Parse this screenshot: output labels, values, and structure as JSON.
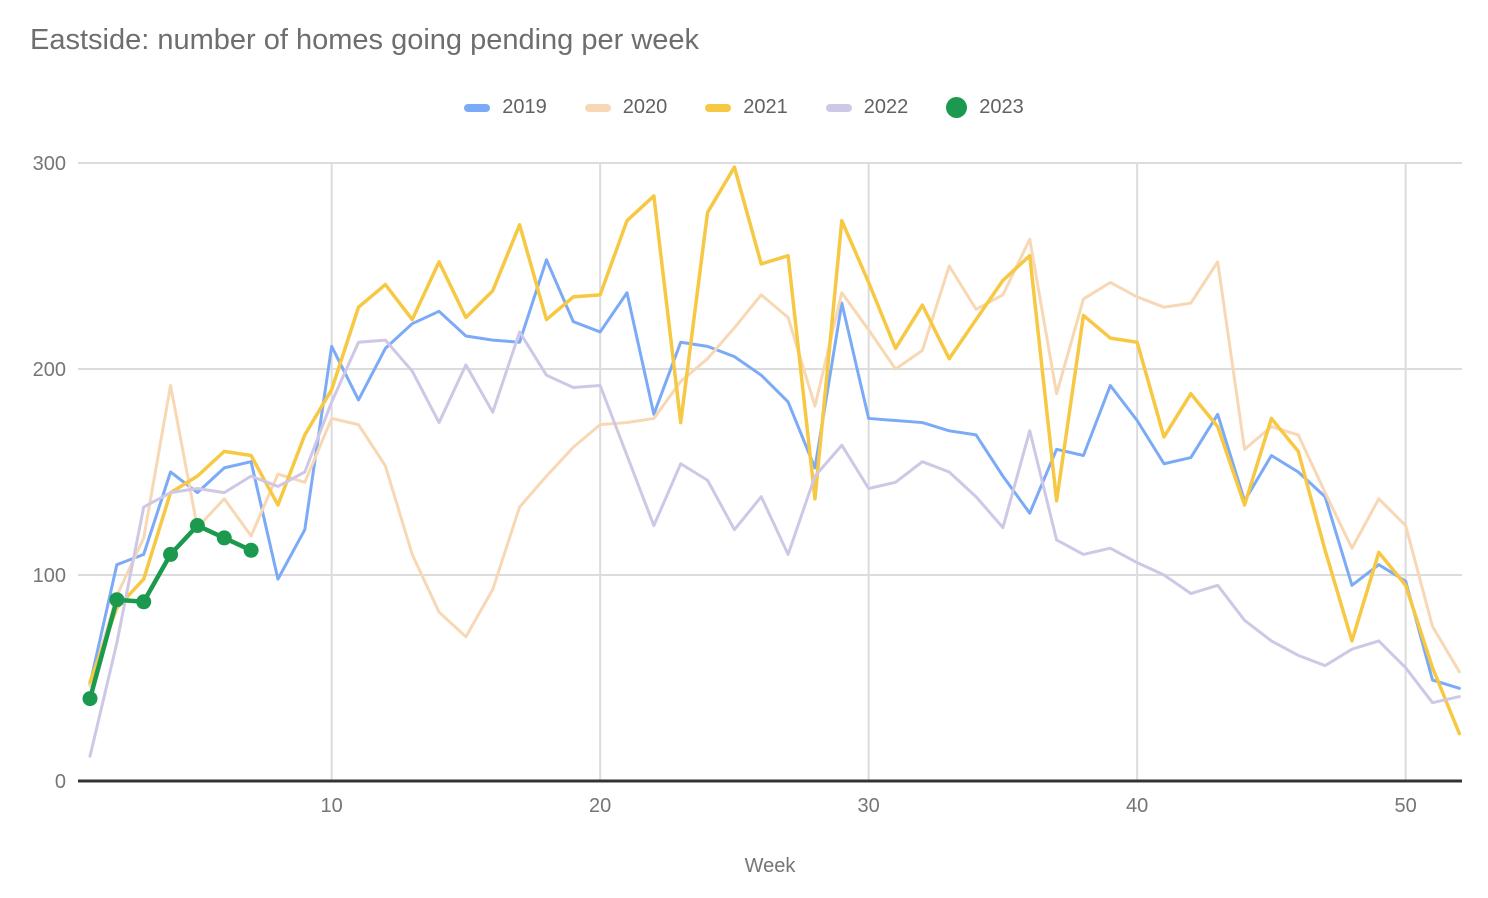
{
  "title": "Eastside: number of homes going pending per week",
  "axis": {
    "x_title": "Week",
    "x_ticks": [
      10,
      20,
      30,
      40,
      50
    ],
    "y_ticks": [
      0,
      100,
      200,
      300
    ],
    "ylim": [
      0,
      300
    ],
    "xlim": [
      1,
      52
    ],
    "grid": "on",
    "legend_position": "top-center"
  },
  "colors": {
    "grid": "#dcdcdc",
    "axis_line": "#333333",
    "tick_text": "#757575",
    "title_text": "#6e6e6e"
  },
  "chart_data": {
    "type": "line",
    "title": "Eastside: number of homes going pending per week",
    "xlabel": "Week",
    "ylabel": "",
    "x": [
      1,
      2,
      3,
      4,
      5,
      6,
      7,
      8,
      9,
      10,
      11,
      12,
      13,
      14,
      15,
      16,
      17,
      18,
      19,
      20,
      21,
      22,
      23,
      24,
      25,
      26,
      27,
      28,
      29,
      30,
      31,
      32,
      33,
      34,
      35,
      36,
      37,
      38,
      39,
      40,
      41,
      42,
      43,
      44,
      45,
      46,
      47,
      48,
      49,
      50,
      51,
      52
    ],
    "series": [
      {
        "name": "2019",
        "color": "#7baaf7",
        "swatch": "dash",
        "line_width": 3,
        "values": [
          47,
          105,
          110,
          150,
          140,
          152,
          155,
          98,
          122,
          211,
          185,
          210,
          222,
          228,
          216,
          214,
          213,
          253,
          223,
          218,
          237,
          178,
          213,
          211,
          206,
          197,
          184,
          152,
          232,
          176,
          175,
          174,
          170,
          168,
          148,
          130,
          161,
          158,
          192,
          175,
          154,
          157,
          178,
          136,
          158,
          150,
          138,
          95,
          105,
          97,
          49,
          45
        ]
      },
      {
        "name": "2020",
        "color": "#f8d8b4",
        "swatch": "dash",
        "line_width": 3,
        "values": [
          46,
          90,
          118,
          192,
          123,
          137,
          119,
          149,
          145,
          176,
          173,
          153,
          110,
          82,
          70,
          93,
          133,
          148,
          162,
          173,
          174,
          176,
          194,
          205,
          220,
          236,
          225,
          182,
          237,
          219,
          200,
          209,
          250,
          229,
          236,
          263,
          188,
          234,
          242,
          235,
          230,
          232,
          252,
          161,
          172,
          168,
          140,
          113,
          137,
          124,
          75,
          53
        ]
      },
      {
        "name": "2021",
        "color": "#f7c843",
        "swatch": "dash",
        "line_width": 3.5,
        "values": [
          48,
          84,
          98,
          140,
          148,
          160,
          158,
          134,
          168,
          190,
          230,
          241,
          224,
          252,
          225,
          238,
          270,
          224,
          235,
          236,
          272,
          284,
          174,
          276,
          298,
          251,
          255,
          137,
          272,
          242,
          210,
          231,
          205,
          224,
          243,
          255,
          136,
          226,
          215,
          213,
          167,
          188,
          172,
          134,
          176,
          160,
          112,
          68,
          111,
          95,
          55,
          23
        ]
      },
      {
        "name": "2022",
        "color": "#cec8e6",
        "swatch": "dash",
        "line_width": 3,
        "values": [
          12,
          67,
          133,
          140,
          142,
          140,
          148,
          143,
          150,
          184,
          213,
          214,
          199,
          174,
          202,
          179,
          218,
          197,
          191,
          192,
          158,
          124,
          154,
          146,
          122,
          138,
          110,
          148,
          163,
          142,
          145,
          155,
          150,
          138,
          123,
          170,
          117,
          110,
          113,
          106,
          100,
          91,
          95,
          78,
          68,
          61,
          56,
          64,
          68,
          55,
          38,
          41
        ]
      },
      {
        "name": "2023",
        "color": "#1b9a4f",
        "swatch": "dot",
        "line_width": 4.5,
        "marker_radius": 7.5,
        "values": [
          40,
          88,
          87,
          110,
          124,
          118,
          112
        ]
      }
    ]
  }
}
